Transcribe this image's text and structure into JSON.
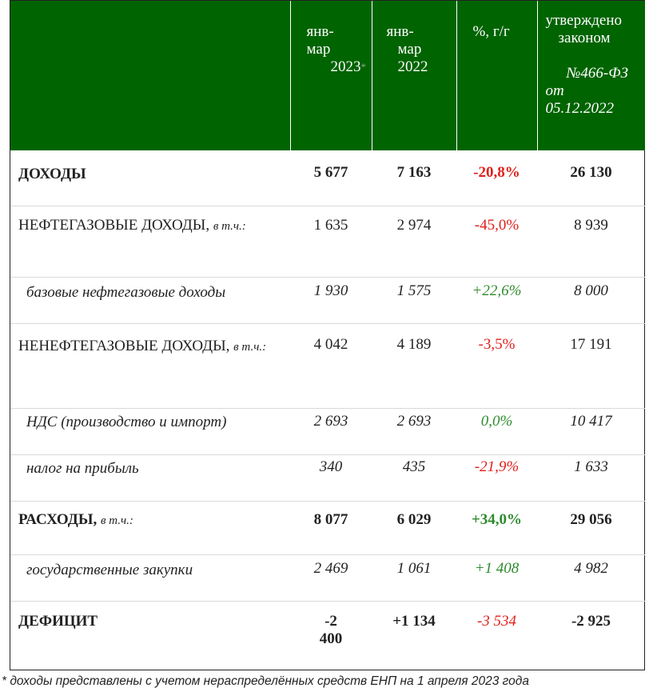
{
  "header": {
    "col2_line1": "янв-",
    "col2_line2": "мар",
    "col2_line3": "2023",
    "col2_mark": "*",
    "col3_line1": "янв-",
    "col3_line2": "мар",
    "col3_line3": "2022",
    "col4": "%, г/г",
    "col5_line1": "утверждено",
    "col5_line2": "законом",
    "col5_line3": "№466-ФЗ",
    "col5_line4": "от",
    "col5_line5": "05.12.2022"
  },
  "rows": [
    {
      "label": "ДОХОДЫ",
      "suffix": "",
      "v2023": "5 677",
      "v2022": "7 163",
      "pct": "-20,8%",
      "law": "26 130"
    },
    {
      "label": "НЕФТЕГАЗОВЫЕ ДОХОДЫ,",
      "suffix": "в т.ч.:",
      "v2023": "1 635",
      "v2022": "2 974",
      "pct": "-45,0%",
      "law": "8 939"
    },
    {
      "label": "базовые нефтегазовые доходы",
      "suffix": "",
      "v2023": "1 930",
      "v2022": "1 575",
      "pct": "+22,6%",
      "law": "8 000"
    },
    {
      "label": "НЕНЕФТЕГАЗОВЫЕ ДОХОДЫ,",
      "suffix": "в т.ч.:",
      "v2023": "4 042",
      "v2022": "4 189",
      "pct": "-3,5%",
      "law": "17 191"
    },
    {
      "label": "НДС (производство и импорт)",
      "suffix": "",
      "v2023": "2 693",
      "v2022": "2 693",
      "pct": "0,0%",
      "law": "10 417"
    },
    {
      "label": "налог на прибыль",
      "suffix": "",
      "v2023": "340",
      "v2022": "435",
      "pct": "-21,9%",
      "law": "1 633"
    },
    {
      "label": "РАСХОДЫ,",
      "suffix": "в т.ч.:",
      "v2023": "8 077",
      "v2022": "6 029",
      "pct": "+34,0%",
      "law": "29 056"
    },
    {
      "label": "государственные закупки",
      "suffix": "",
      "v2023": "2 469",
      "v2022": "1 061",
      "pct": "+1 408",
      "law": "4 982"
    },
    {
      "label": "ДЕФИЦИТ",
      "suffix": "",
      "v2023_line1": "-2",
      "v2023_line2": "400",
      "v2022": "+1 134",
      "pct": "-3 534",
      "law": "-2 925"
    }
  ],
  "footnote": "* доходы представлены с учетом нераспределённых средств ЕНП на 1 апреля 2023 года",
  "colors": {
    "header_bg": "#006400",
    "negative": "#e0201b",
    "positive": "#2e8b2e"
  }
}
